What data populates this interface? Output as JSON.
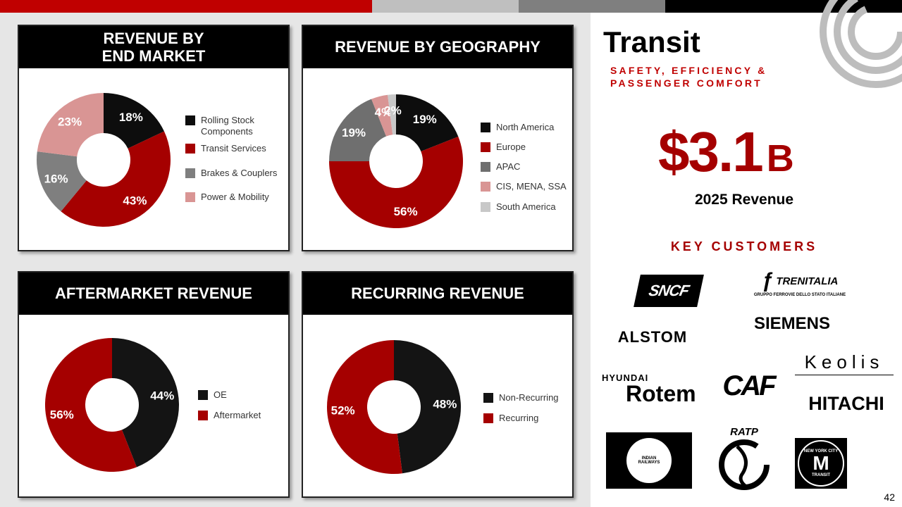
{
  "top_bar_colors": [
    "#c00000",
    "#bfbfbf",
    "#7f7f7f",
    "#000000"
  ],
  "charts": {
    "end_market": {
      "title": "REVENUE BY\nEND MARKET",
      "chart_data": {
        "type": "pie",
        "categories": [
          "Rolling  Stock Components",
          "Transit Services",
          "Brakes & Couplers",
          "Power & Mobility"
        ],
        "values": [
          18,
          43,
          16,
          23
        ],
        "labels": [
          "18%",
          "43%",
          "16%",
          "23%"
        ],
        "colors": [
          "#0d0d0d",
          "#a50000",
          "#7f7f7f",
          "#d99594"
        ]
      }
    },
    "geography": {
      "title": "REVENUE BY GEOGRAPHY",
      "chart_data": {
        "type": "pie",
        "categories": [
          "North America",
          "Europe",
          "APAC",
          "CIS, MENA, SSA",
          "South America"
        ],
        "values": [
          19,
          56,
          19,
          4,
          2
        ],
        "labels": [
          "19%",
          "56%",
          "19%",
          "4%",
          "2%"
        ],
        "colors": [
          "#0d0d0d",
          "#a50000",
          "#6f6f6f",
          "#d99594",
          "#c8c8c8"
        ]
      }
    },
    "aftermarket": {
      "title": "AFTERMARKET REVENUE",
      "chart_data": {
        "type": "pie",
        "categories": [
          "OE",
          "Aftermarket"
        ],
        "values": [
          44,
          56
        ],
        "labels": [
          "44%",
          "56%"
        ],
        "colors": [
          "#141414",
          "#a50000"
        ]
      }
    },
    "recurring": {
      "title": "RECURRING REVENUE",
      "chart_data": {
        "type": "pie",
        "categories": [
          "Non-Recurring",
          "Recurring"
        ],
        "values": [
          48,
          52
        ],
        "labels": [
          "48%",
          "52%"
        ],
        "colors": [
          "#141414",
          "#a50000"
        ]
      }
    }
  },
  "right_panel": {
    "title": "Transit",
    "subtitle": "SAFETY, EFFICIENCY & PASSENGER COMFORT",
    "big_value": "$3.1",
    "big_unit": "B",
    "revenue_label": "2025 Revenue",
    "key_customers_label": "KEY CUSTOMERS",
    "logos": {
      "sncf": "SNCF",
      "trenitalia": "TRENITALIA",
      "trenitalia_sub": "GRUPPO FERROVIE DELLO STATO ITALIANE",
      "alstom": "ALSTOM",
      "siemens": "SIEMENS",
      "keolis": "Keolis",
      "hyundai": "HYUNDAI",
      "rotem": "Rotem",
      "caf": "CAF",
      "hitachi": "HITACHI",
      "indian_railways": "INDIAN RAILWAYS",
      "ratp": "RATP",
      "nyc_top": "NEW YORK CITY",
      "nyc_m": "M",
      "nyc_bottom": "TRANSIT"
    },
    "accent_color": "#a50000"
  },
  "page_number": "42"
}
